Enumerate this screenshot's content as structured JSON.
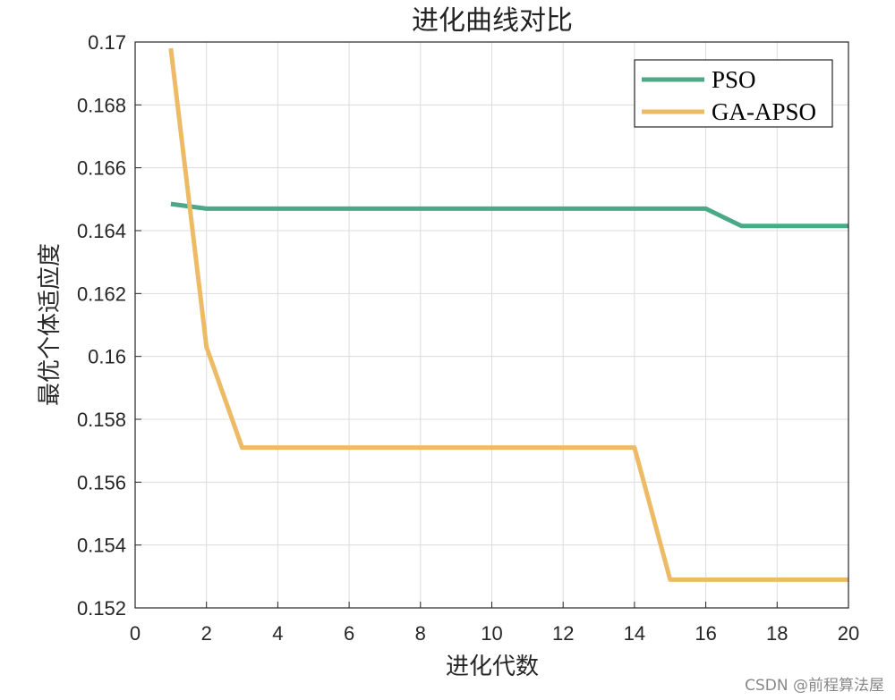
{
  "chart_data": {
    "type": "line",
    "title": "进化曲线对比",
    "xlabel": "进化代数",
    "ylabel": "最优个体适应度",
    "xlim": [
      0,
      20
    ],
    "ylim": [
      0.152,
      0.17
    ],
    "xticks": [
      0,
      2,
      4,
      6,
      8,
      10,
      12,
      14,
      16,
      18,
      20
    ],
    "yticks": [
      0.152,
      0.154,
      0.156,
      0.158,
      0.16,
      0.162,
      0.164,
      0.166,
      0.168,
      0.17
    ],
    "xtick_labels": [
      "0",
      "2",
      "4",
      "6",
      "8",
      "10",
      "12",
      "14",
      "16",
      "18",
      "20"
    ],
    "ytick_labels": [
      "0.152",
      "0.154",
      "0.156",
      "0.158",
      "0.16",
      "0.162",
      "0.164",
      "0.166",
      "0.168",
      "0.17"
    ],
    "grid": true,
    "legend_position": "top-right",
    "x": [
      1,
      2,
      3,
      4,
      5,
      6,
      7,
      8,
      9,
      10,
      11,
      12,
      13,
      14,
      15,
      16,
      17,
      18,
      19,
      20
    ],
    "series": [
      {
        "name": "PSO",
        "color": "#4aaa88",
        "values": [
          0.16485,
          0.1647,
          0.1647,
          0.1647,
          0.1647,
          0.1647,
          0.1647,
          0.1647,
          0.1647,
          0.1647,
          0.1647,
          0.1647,
          0.1647,
          0.1647,
          0.1647,
          0.1647,
          0.16415,
          0.16415,
          0.16415,
          0.16415
        ]
      },
      {
        "name": "GA-APSO",
        "color": "#edbb66",
        "values": [
          0.1698,
          0.1603,
          0.1571,
          0.1571,
          0.1571,
          0.1571,
          0.1571,
          0.1571,
          0.1571,
          0.1571,
          0.1571,
          0.1571,
          0.1571,
          0.1571,
          0.1529,
          0.1529,
          0.1529,
          0.1529,
          0.1529,
          0.1529
        ]
      }
    ]
  },
  "watermark": "CSDN @前程算法屋"
}
